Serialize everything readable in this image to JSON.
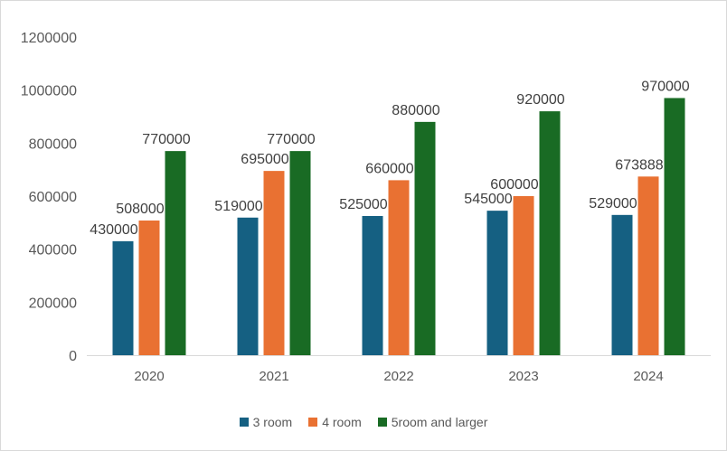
{
  "chart_data": {
    "type": "bar",
    "title": "",
    "xlabel": "",
    "ylabel": "",
    "categories": [
      "2020",
      "2021",
      "2022",
      "2023",
      "2024"
    ],
    "ylim": [
      0,
      1200000
    ],
    "yticks": [
      0,
      200000,
      400000,
      600000,
      800000,
      1000000,
      1200000
    ],
    "ytick_labels": [
      "0",
      "200000",
      "400000",
      "600000",
      "800000",
      "1000000",
      "1200000"
    ],
    "grid": false,
    "legend_position": "bottom",
    "data_labels": true,
    "series": [
      {
        "name": "3 room",
        "color": "#156082",
        "values": [
          430000,
          519000,
          525000,
          545000,
          529000
        ]
      },
      {
        "name": "4 room",
        "color": "#E97132",
        "values": [
          508000,
          695000,
          660000,
          600000,
          673888
        ]
      },
      {
        "name": "5room and larger",
        "color": "#196B24",
        "values": [
          770000,
          770000,
          880000,
          920000,
          970000
        ]
      }
    ]
  }
}
